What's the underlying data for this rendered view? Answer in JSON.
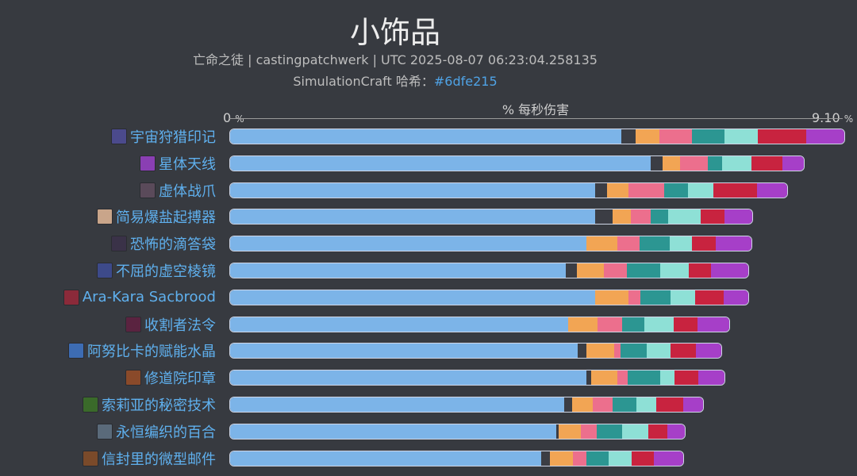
{
  "header": {
    "title": "小饰品",
    "subtitle_line1": "亡命之徒 | castingpatchwerk | UTC 2025-08-07 06:23:04.258135",
    "subtitle_line2_prefix": "SimulationCraft 哈希：",
    "subtitle_line2_hash": "#6dfe215"
  },
  "chart_data": {
    "type": "bar",
    "orientation": "horizontal",
    "stacked": true,
    "title": "小饰品",
    "xlabel": "% 每秒伤害",
    "xlim": [
      0,
      9.1
    ],
    "tick_labels": [
      "0",
      "9.10"
    ],
    "tick_unit": "%",
    "categories": [
      "宇宙狩猎印记",
      "星体天线",
      "虚体战爪",
      "简易爆盐起搏器",
      "恐怖的滴答袋",
      "不屈的虚空棱镜",
      "Ara-Kara Sacbrood",
      "收割者法令",
      "阿努比卡的赋能水晶",
      "修道院印章",
      "索莉亚的秘密技术",
      "永恒编织的百合",
      "信封里的微型邮件"
    ],
    "icons": [
      "cosmic-hunt-icon",
      "astral-antenna-icon",
      "void-claw-icon",
      "salt-pacemaker-icon",
      "ticking-bag-icon",
      "void-prism-icon",
      "sacbrood-icon",
      "reaper-decree-icon",
      "crystal-icon",
      "monastery-seal-icon",
      "secret-tech-icon",
      "lily-icon",
      "mail-icon"
    ],
    "icon_colors": [
      "#4b4a8c",
      "#8a3fb3",
      "#5a4a5a",
      "#c9a58a",
      "#3a3248",
      "#3d4a8a",
      "#8b2a3a",
      "#5a2340",
      "#3d6cb3",
      "#8a4a2a",
      "#3a6a2a",
      "#5a6a7a",
      "#7a4a2a"
    ],
    "series": [
      {
        "name": "",
        "color": "#7cb4e8",
        "values": [
          5.8,
          6.24,
          5.42,
          5.42,
          5.29,
          4.98,
          5.42,
          5.02,
          5.16,
          5.29,
          4.96,
          4.84,
          4.62
        ]
      },
      {
        "name": "",
        "color": "#3b3d44",
        "values": [
          0.22,
          0.18,
          0.17,
          0.25,
          0.0,
          0.16,
          0.0,
          0.0,
          0.13,
          0.07,
          0.11,
          0.03,
          0.13
        ]
      },
      {
        "name": "",
        "color": "#f2a554",
        "values": [
          0.35,
          0.26,
          0.32,
          0.28,
          0.46,
          0.41,
          0.49,
          0.43,
          0.41,
          0.39,
          0.31,
          0.33,
          0.33
        ]
      },
      {
        "name": "",
        "color": "#ec6f8d",
        "values": [
          0.48,
          0.41,
          0.53,
          0.29,
          0.33,
          0.34,
          0.18,
          0.37,
          0.09,
          0.15,
          0.29,
          0.24,
          0.21
        ]
      },
      {
        "name": "",
        "color": "#2c9692",
        "values": [
          0.49,
          0.21,
          0.35,
          0.26,
          0.44,
          0.49,
          0.44,
          0.33,
          0.39,
          0.48,
          0.36,
          0.38,
          0.32
        ]
      },
      {
        "name": "",
        "color": "#8ee0d6",
        "values": [
          0.49,
          0.43,
          0.38,
          0.48,
          0.33,
          0.43,
          0.37,
          0.43,
          0.35,
          0.21,
          0.29,
          0.38,
          0.35
        ]
      },
      {
        "name": "",
        "color": "#c8233f",
        "values": [
          0.72,
          0.47,
          0.65,
          0.36,
          0.35,
          0.33,
          0.42,
          0.36,
          0.38,
          0.36,
          0.4,
          0.29,
          0.33
        ]
      },
      {
        "name": "",
        "color": "#a63fc8",
        "values": [
          0.56,
          0.31,
          0.44,
          0.41,
          0.53,
          0.55,
          0.37,
          0.46,
          0.38,
          0.38,
          0.3,
          0.26,
          0.43
        ]
      }
    ]
  }
}
